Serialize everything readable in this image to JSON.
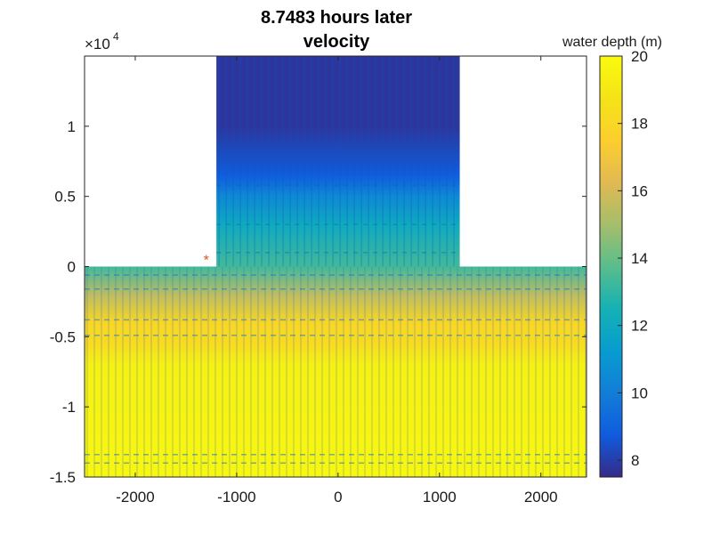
{
  "chart_data": {
    "type": "heatmap",
    "title_lines": [
      "8.7483 hours later",
      "velocity"
    ],
    "xlabel": "",
    "ylabel": "",
    "xlim": [
      -2500,
      2450
    ],
    "ylim": [
      -15000,
      15000
    ],
    "x_ticks": [
      -2000,
      -1000,
      0,
      1000,
      2000
    ],
    "x_tick_labels": [
      "-2000",
      "-1000",
      "0",
      "1000",
      "2000"
    ],
    "y_ticks": [
      -15000,
      -10000,
      -5000,
      0,
      5000,
      10000
    ],
    "y_tick_labels": [
      "-1.5",
      "-1",
      "-0.5",
      "0",
      "0.5",
      "1"
    ],
    "y_exponent_label": "×10",
    "y_exponent_power": "4",
    "colorbar": {
      "label": "water depth (m)",
      "range": [
        7.5,
        20
      ],
      "ticks": [
        8,
        10,
        12,
        14,
        16,
        18,
        20
      ],
      "tick_labels": [
        "8",
        "10",
        "12",
        "14",
        "16",
        "18",
        "20"
      ],
      "colormap": "parula"
    },
    "domain": {
      "ocean": {
        "x": [
          -2500,
          2450
        ],
        "y": [
          -15000,
          0
        ]
      },
      "channel": {
        "x": [
          -1200,
          1200
        ],
        "y": [
          0,
          15000
        ]
      }
    },
    "depth_profile": [
      {
        "y": 15000,
        "depth": 7.8
      },
      {
        "y": 10000,
        "depth": 7.8
      },
      {
        "y": 6500,
        "depth": 8.8
      },
      {
        "y": 5000,
        "depth": 10.5
      },
      {
        "y": 3000,
        "depth": 12.0
      },
      {
        "y": 0,
        "depth": 13.3
      },
      {
        "y": -2000,
        "depth": 15.5
      },
      {
        "y": -4000,
        "depth": 18.0
      },
      {
        "y": -5500,
        "depth": 18.3
      },
      {
        "y": -7000,
        "depth": 19.5
      },
      {
        "y": -15000,
        "depth": 19.8
      }
    ],
    "marker": {
      "x": -1300,
      "y": 500,
      "symbol": "*",
      "color": "#d95319"
    }
  }
}
